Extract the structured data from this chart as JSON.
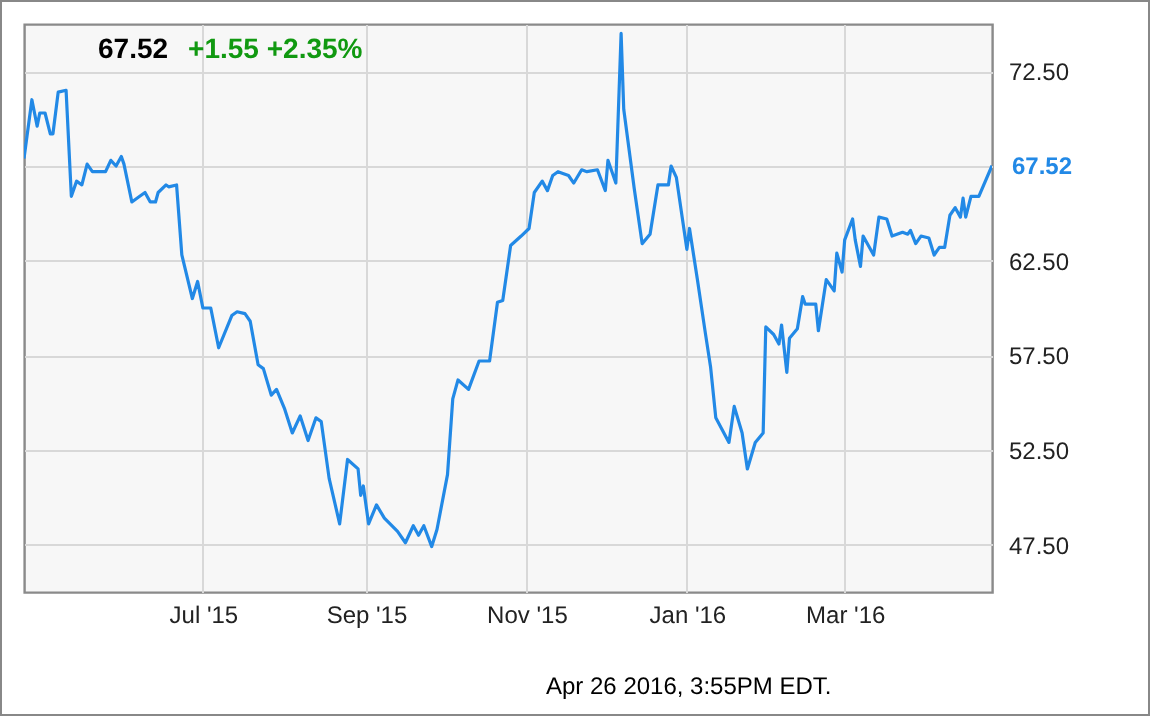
{
  "chart_data": {
    "type": "line",
    "title": "67.52",
    "subtitle": "+1.55 +2.35%",
    "color": "#2289e6",
    "grid": true,
    "xlim": [
      "2015-04-24",
      "2016-04-26"
    ],
    "xticks": [
      {
        "value": "2015-07-01",
        "label": "Jul '15"
      },
      {
        "value": "2015-09-01",
        "label": "Sep '15"
      },
      {
        "value": "2015-11-01",
        "label": "Nov '15"
      },
      {
        "value": "2016-01-01",
        "label": "Jan '16"
      },
      {
        "value": "2016-03-01",
        "label": "Mar '16"
      }
    ],
    "ylim": [
      45,
      75
    ],
    "yticks": [
      {
        "value": 47.5,
        "label": "47.50"
      },
      {
        "value": 52.5,
        "label": "52.50"
      },
      {
        "value": 57.5,
        "label": "57.50"
      },
      {
        "value": 62.5,
        "label": "62.50"
      },
      {
        "value": 67.5,
        "label": null
      },
      {
        "value": 72.5,
        "label": "72.50"
      }
    ],
    "x": [
      "2015-04-24",
      "2015-04-27",
      "2015-04-29",
      "2015-04-30",
      "2015-05-02",
      "2015-05-04",
      "2015-05-05",
      "2015-05-07",
      "2015-05-10",
      "2015-05-12",
      "2015-05-14",
      "2015-05-16",
      "2015-05-18",
      "2015-05-20",
      "2015-05-25",
      "2015-05-27",
      "2015-05-29",
      "2015-05-31",
      "2015-06-01",
      "2015-06-04",
      "2015-06-07",
      "2015-06-09",
      "2015-06-11",
      "2015-06-13",
      "2015-06-14",
      "2015-06-17",
      "2015-06-18",
      "2015-06-21",
      "2015-06-23",
      "2015-06-27",
      "2015-06-29",
      "2015-07-01",
      "2015-07-04",
      "2015-07-07",
      "2015-07-12",
      "2015-07-14",
      "2015-07-17",
      "2015-07-19",
      "2015-07-22",
      "2015-07-24",
      "2015-07-27",
      "2015-07-29",
      "2015-08-01",
      "2015-08-04",
      "2015-08-07",
      "2015-08-10",
      "2015-08-13",
      "2015-08-15",
      "2015-08-18",
      "2015-08-22",
      "2015-08-25",
      "2015-08-29",
      "2015-08-30",
      "2015-08-31",
      "2015-09-02",
      "2015-09-05",
      "2015-09-08",
      "2015-09-13",
      "2015-09-16",
      "2015-09-19",
      "2015-09-21",
      "2015-09-23",
      "2015-09-26",
      "2015-09-28",
      "2015-10-02",
      "2015-10-04",
      "2015-10-06",
      "2015-10-10",
      "2015-10-14",
      "2015-10-18",
      "2015-10-21",
      "2015-10-23",
      "2015-10-26",
      "2015-10-30",
      "2015-11-02",
      "2015-11-04",
      "2015-11-07",
      "2015-11-09",
      "2015-11-11",
      "2015-11-13",
      "2015-11-17",
      "2015-11-19",
      "2015-11-22",
      "2015-11-24",
      "2015-11-28",
      "2015-12-01",
      "2015-12-02",
      "2015-12-05",
      "2015-12-07",
      "2015-12-08",
      "2015-12-12",
      "2015-12-15",
      "2015-12-18",
      "2015-12-21",
      "2015-12-25",
      "2015-12-26",
      "2015-12-28",
      "2016-01-01",
      "2016-01-02",
      "2016-01-05",
      "2016-01-08",
      "2016-01-10",
      "2016-01-12",
      "2016-01-17",
      "2016-01-19",
      "2016-01-22",
      "2016-01-24",
      "2016-01-27",
      "2016-01-30",
      "2016-01-31",
      "2016-02-03",
      "2016-02-05",
      "2016-02-06",
      "2016-02-08",
      "2016-02-09",
      "2016-02-12",
      "2016-02-14",
      "2016-02-15",
      "2016-02-19",
      "2016-02-20",
      "2016-02-23",
      "2016-02-26",
      "2016-02-27",
      "2016-02-29",
      "2016-03-01",
      "2016-03-04",
      "2016-03-05",
      "2016-03-07",
      "2016-03-08",
      "2016-03-12",
      "2016-03-14",
      "2016-03-17",
      "2016-03-19",
      "2016-03-23",
      "2016-03-25",
      "2016-03-26",
      "2016-03-28",
      "2016-03-30",
      "2016-04-02",
      "2016-04-04",
      "2016-04-06",
      "2016-04-08",
      "2016-04-10",
      "2016-04-12",
      "2016-04-14",
      "2016-04-15",
      "2016-04-16",
      "2016-04-18",
      "2016-04-21",
      "2016-04-26"
    ],
    "values": [
      67.9,
      71.0,
      69.6,
      70.3,
      70.3,
      69.2,
      69.2,
      71.4,
      71.5,
      65.9,
      66.7,
      66.5,
      67.6,
      67.2,
      67.2,
      67.8,
      67.5,
      68.0,
      67.6,
      65.6,
      65.9,
      66.1,
      65.6,
      65.6,
      66.1,
      66.5,
      66.4,
      66.5,
      62.8,
      60.5,
      61.4,
      60.0,
      60.0,
      57.9,
      59.6,
      59.8,
      59.7,
      59.3,
      57.0,
      56.8,
      55.4,
      55.7,
      54.7,
      53.4,
      54.3,
      53.0,
      54.2,
      54.0,
      51.0,
      48.6,
      52.0,
      51.5,
      50.1,
      50.6,
      48.6,
      49.6,
      48.9,
      48.2,
      47.6,
      48.5,
      48.0,
      48.5,
      47.4,
      48.3,
      51.2,
      55.2,
      56.2,
      55.7,
      57.2,
      57.2,
      60.3,
      60.4,
      63.3,
      63.8,
      64.2,
      66.1,
      66.7,
      66.2,
      67.0,
      67.2,
      67.0,
      66.6,
      67.3,
      67.2,
      67.3,
      66.2,
      67.8,
      66.6,
      74.5,
      70.5,
      66.3,
      63.4,
      63.9,
      66.5,
      66.5,
      67.5,
      66.9,
      63.1,
      64.2,
      61.5,
      58.7,
      56.9,
      54.2,
      52.9,
      54.8,
      53.4,
      51.5,
      52.9,
      53.4,
      59.0,
      58.6,
      58.1,
      59.1,
      56.6,
      58.4,
      58.9,
      60.6,
      60.2,
      60.2,
      58.8,
      61.5,
      60.9,
      62.9,
      61.9,
      63.6,
      64.7,
      63.6,
      62.2,
      63.8,
      62.8,
      64.8,
      64.7,
      63.8,
      64.0,
      63.9,
      64.1,
      63.4,
      63.8,
      63.7,
      62.8,
      63.2,
      63.2,
      64.9,
      65.3,
      64.8,
      65.8,
      64.8,
      65.9,
      65.9,
      67.52
    ],
    "annotations": [
      {
        "text": "67.52",
        "x": "2016-04-26",
        "y": 67.52
      },
      "Apr 26 2016, 3:55PM EDT."
    ]
  }
}
